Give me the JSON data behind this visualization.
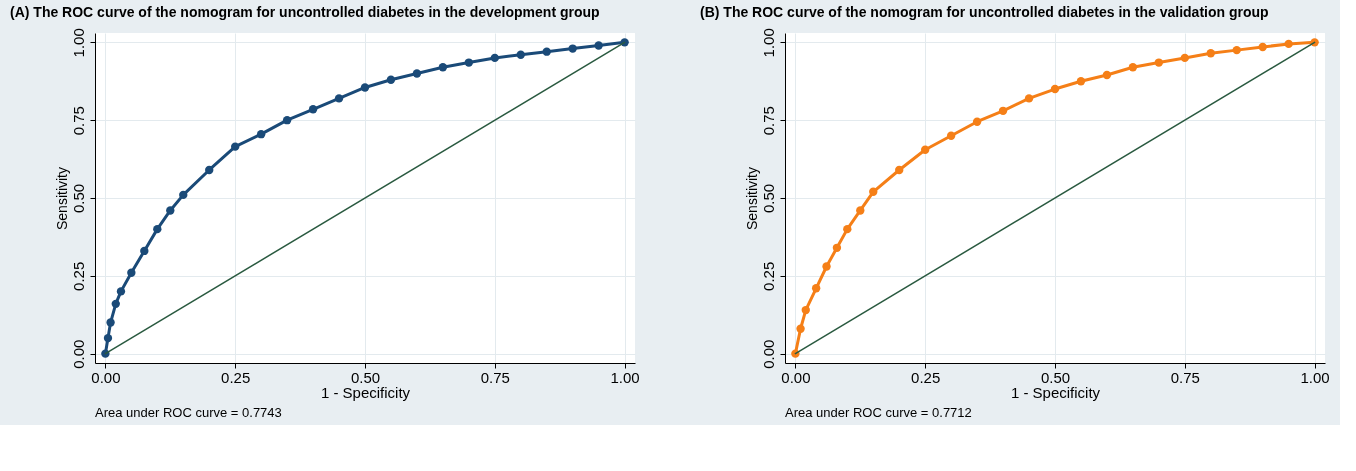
{
  "chart_data": [
    {
      "type": "line",
      "title": "(A) The ROC curve of the nomogram for uncontrolled diabetes in the development group",
      "xlabel": "1 - Specificity",
      "ylabel": "Sensitivity",
      "annotations": [
        "Area under ROC curve = 0.7743"
      ],
      "xlim": [
        -0.02,
        1.02
      ],
      "ylim": [
        -0.03,
        1.03
      ],
      "xticks": [
        {
          "value": 0,
          "label": "0.00"
        },
        {
          "value": 0.25,
          "label": "0.25"
        },
        {
          "value": 0.5,
          "label": "0.50"
        },
        {
          "value": 0.75,
          "label": "0.75"
        },
        {
          "value": 1,
          "label": "1.00"
        }
      ],
      "yticks": [
        {
          "value": 0,
          "label": "0.00"
        },
        {
          "value": 0.25,
          "label": "0.25"
        },
        {
          "value": 0.5,
          "label": "0.50"
        },
        {
          "value": 0.75,
          "label": "0.75"
        },
        {
          "value": 1,
          "label": "1.00"
        }
      ],
      "grid": true,
      "marker": "circle",
      "series": [
        {
          "type": "line",
          "color": "#1a4a78",
          "x": [
            0,
            0.005,
            0.01,
            0.02,
            0.03,
            0.05,
            0.075,
            0.1,
            0.125,
            0.15,
            0.2,
            0.25,
            0.3,
            0.35,
            0.4,
            0.45,
            0.5,
            0.55,
            0.6,
            0.65,
            0.7,
            0.75,
            0.8,
            0.85,
            0.9,
            0.95,
            1
          ],
          "values": [
            0,
            0.05,
            0.1,
            0.16,
            0.2,
            0.26,
            0.33,
            0.4,
            0.46,
            0.51,
            0.59,
            0.665,
            0.705,
            0.75,
            0.785,
            0.82,
            0.855,
            0.88,
            0.9,
            0.92,
            0.935,
            0.95,
            0.96,
            0.97,
            0.98,
            0.99,
            1
          ]
        },
        {
          "type": "line",
          "color": "#2a5a40",
          "marker": "none",
          "x": [
            0,
            1
          ],
          "values": [
            0,
            1
          ]
        }
      ]
    },
    {
      "type": "line",
      "title": "(B) The ROC curve of the nomogram for uncontrolled diabetes in the validation group",
      "xlabel": "1 - Specificity",
      "ylabel": "Sensitivity",
      "annotations": [
        "Area under ROC curve = 0.7712"
      ],
      "xlim": [
        -0.02,
        1.02
      ],
      "ylim": [
        -0.03,
        1.03
      ],
      "xticks": [
        {
          "value": 0,
          "label": "0.00"
        },
        {
          "value": 0.25,
          "label": "0.25"
        },
        {
          "value": 0.5,
          "label": "0.50"
        },
        {
          "value": 0.75,
          "label": "0.75"
        },
        {
          "value": 1,
          "label": "1.00"
        }
      ],
      "yticks": [
        {
          "value": 0,
          "label": "0.00"
        },
        {
          "value": 0.25,
          "label": "0.25"
        },
        {
          "value": 0.5,
          "label": "0.50"
        },
        {
          "value": 0.75,
          "label": "0.75"
        },
        {
          "value": 1,
          "label": "1.00"
        }
      ],
      "grid": true,
      "marker": "circle",
      "series": [
        {
          "type": "line",
          "color": "#f57f17",
          "x": [
            0,
            0.01,
            0.02,
            0.04,
            0.06,
            0.08,
            0.1,
            0.125,
            0.15,
            0.2,
            0.25,
            0.3,
            0.35,
            0.4,
            0.45,
            0.5,
            0.55,
            0.6,
            0.65,
            0.7,
            0.75,
            0.8,
            0.85,
            0.9,
            0.95,
            1
          ],
          "values": [
            0,
            0.08,
            0.14,
            0.21,
            0.28,
            0.34,
            0.4,
            0.46,
            0.52,
            0.59,
            0.655,
            0.7,
            0.745,
            0.78,
            0.82,
            0.85,
            0.875,
            0.895,
            0.92,
            0.935,
            0.95,
            0.965,
            0.975,
            0.985,
            0.995,
            1
          ]
        },
        {
          "type": "line",
          "color": "#2a5a40",
          "marker": "none",
          "x": [
            0,
            1
          ],
          "values": [
            0,
            1
          ]
        }
      ]
    }
  ]
}
